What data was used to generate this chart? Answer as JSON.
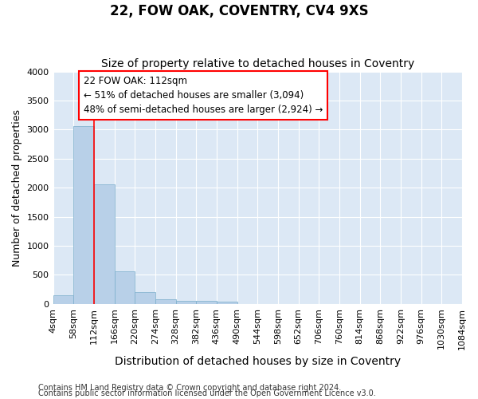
{
  "title": "22, FOW OAK, COVENTRY, CV4 9XS",
  "subtitle": "Size of property relative to detached houses in Coventry",
  "xlabel": "Distribution of detached houses by size in Coventry",
  "ylabel": "Number of detached properties",
  "footer_line1": "Contains HM Land Registry data © Crown copyright and database right 2024.",
  "footer_line2": "Contains public sector information licensed under the Open Government Licence v3.0.",
  "annotation_line1": "22 FOW OAK: 112sqm",
  "annotation_line2": "← 51% of detached houses are smaller (3,094)",
  "annotation_line3": "48% of semi-detached houses are larger (2,924) →",
  "bar_color": "#b8d0e8",
  "bar_edge_color": "#7aaecb",
  "red_line_x": 112,
  "bins": [
    4,
    58,
    112,
    166,
    220,
    274,
    328,
    382,
    436,
    490,
    544,
    598,
    652,
    706,
    760,
    814,
    868,
    922,
    976,
    1030,
    1084
  ],
  "bar_heights": [
    150,
    3060,
    2060,
    565,
    210,
    85,
    55,
    50,
    35,
    0,
    0,
    0,
    0,
    0,
    0,
    0,
    0,
    0,
    0,
    0
  ],
  "ylim": [
    0,
    4000
  ],
  "yticks": [
    0,
    500,
    1000,
    1500,
    2000,
    2500,
    3000,
    3500,
    4000
  ],
  "background_color": "#ffffff",
  "plot_bg_color": "#dce8f5",
  "grid_color": "#ffffff",
  "title_fontsize": 12,
  "subtitle_fontsize": 10,
  "xlabel_fontsize": 10,
  "ylabel_fontsize": 9,
  "tick_fontsize": 8,
  "footer_fontsize": 7,
  "annotation_fontsize": 8.5
}
